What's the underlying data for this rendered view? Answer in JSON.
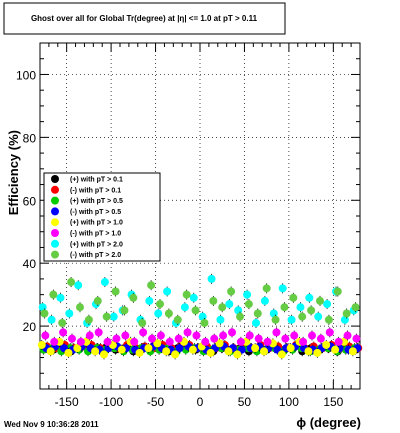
{
  "chart_data": {
    "type": "scatter",
    "title": "Ghost over all for Global Tr(degree) at |η| <= 1.0 at pT > 0.11",
    "xlabel": "ϕ (degree)",
    "ylabel": "Efficiency (%)",
    "xlim": [
      -180,
      180
    ],
    "ylim": [
      0,
      110
    ],
    "xticks": [
      -150,
      -100,
      -50,
      0,
      50,
      100,
      150
    ],
    "yticks": [
      20,
      40,
      60,
      80,
      100
    ],
    "grid": true,
    "legend_position": "left",
    "timestamp": "Wed Nov  9 10:36:28 2011",
    "series": [
      {
        "name": "(+) with pT > 0.1",
        "color": "#000000",
        "marker": "circle",
        "x": [
          -175,
          -165,
          -155,
          -145,
          -135,
          -125,
          -115,
          -105,
          -95,
          -85,
          -75,
          -65,
          -55,
          -45,
          -35,
          -25,
          -15,
          -5,
          5,
          15,
          25,
          35,
          45,
          55,
          65,
          75,
          85,
          95,
          105,
          115,
          125,
          135,
          145,
          155,
          165,
          175
        ],
        "y": [
          13,
          12.5,
          13,
          12,
          13,
          12.5,
          13,
          13.5,
          12.5,
          13,
          12,
          13,
          12.5,
          13,
          12,
          13,
          13.5,
          12.5,
          13,
          12,
          13,
          12.5,
          13,
          12,
          13,
          12.5,
          13,
          12.5,
          13,
          12,
          13,
          12.5,
          13,
          12,
          13,
          12.5
        ]
      },
      {
        "name": "(-) with pT > 0.1",
        "color": "#ff0000",
        "marker": "circle",
        "x": [
          -172,
          -162,
          -152,
          -142,
          -132,
          -122,
          -112,
          -102,
          -92,
          -82,
          -72,
          -62,
          -52,
          -42,
          -32,
          -22,
          -12,
          -2,
          8,
          18,
          28,
          38,
          48,
          58,
          68,
          78,
          88,
          98,
          108,
          118,
          128,
          138,
          148,
          158,
          168,
          178
        ],
        "y": [
          13.5,
          13,
          14,
          13,
          13.5,
          14,
          13,
          13.5,
          13,
          14,
          13,
          13.5,
          13,
          14,
          13,
          13.5,
          14,
          13,
          13.5,
          13,
          14,
          13,
          13.5,
          13,
          14,
          13,
          13.5,
          13,
          14,
          13,
          13.5,
          13,
          14,
          13,
          13.5,
          13
        ]
      },
      {
        "name": "(+) with pT > 0.5",
        "color": "#00cc00",
        "marker": "circle",
        "x": [
          -176,
          -166,
          -156,
          -146,
          -136,
          -126,
          -116,
          -106,
          -96,
          -86,
          -76,
          -66,
          -56,
          -46,
          -36,
          -26,
          -16,
          -6,
          4,
          14,
          24,
          34,
          44,
          54,
          64,
          74,
          84,
          94,
          104,
          114,
          124,
          134,
          144,
          154,
          164,
          174
        ],
        "y": [
          12.5,
          13,
          12,
          13,
          12.5,
          12,
          13,
          12.5,
          13,
          12,
          12.5,
          13,
          12,
          12.5,
          13,
          12,
          12.5,
          13,
          12,
          12.5,
          13,
          12,
          12.5,
          13,
          12,
          12.5,
          13,
          12,
          12.5,
          13,
          12,
          12.5,
          13,
          12,
          12.5,
          13
        ]
      },
      {
        "name": "(-) with pT > 0.5",
        "color": "#0000ff",
        "marker": "circle",
        "x": [
          -173,
          -163,
          -153,
          -143,
          -133,
          -123,
          -113,
          -103,
          -93,
          -83,
          -73,
          -63,
          -53,
          -43,
          -33,
          -23,
          -13,
          -3,
          7,
          17,
          27,
          37,
          47,
          57,
          67,
          77,
          87,
          97,
          107,
          117,
          127,
          137,
          147,
          157,
          167,
          177
        ],
        "y": [
          13,
          13.5,
          13,
          12.5,
          13.5,
          13,
          12.5,
          13,
          13.5,
          13,
          12.5,
          13,
          13.5,
          13,
          12.5,
          13,
          13.5,
          13,
          12.5,
          13,
          13.5,
          13,
          12.5,
          13,
          13.5,
          13,
          12.5,
          13,
          13.5,
          13,
          12.5,
          13,
          13.5,
          13,
          12.5,
          13
        ]
      },
      {
        "name": "(+) with pT > 1.0",
        "color": "#ffff00",
        "marker": "circle",
        "x": [
          -178,
          -168,
          -158,
          -148,
          -138,
          -128,
          -118,
          -108,
          -98,
          -88,
          -78,
          -68,
          -58,
          -48,
          -38,
          -28,
          -18,
          -8,
          2,
          12,
          22,
          32,
          42,
          52,
          62,
          72,
          82,
          92,
          102,
          112,
          122,
          132,
          142,
          152,
          162,
          172
        ],
        "y": [
          14,
          12,
          15,
          11.5,
          13,
          15,
          12,
          11,
          14,
          12.5,
          15,
          11.5,
          13,
          14.5,
          12,
          11,
          15,
          12.5,
          13.5,
          11.5,
          14.5,
          12,
          11,
          15,
          13,
          12,
          14.5,
          11,
          13,
          15,
          12,
          11.5,
          14,
          12.5,
          15,
          12
        ]
      },
      {
        "name": "(-) with pT > 1.0",
        "color": "#ff00ff",
        "marker": "circle",
        "x": [
          -174,
          -164,
          -154,
          -144,
          -134,
          -124,
          -114,
          -104,
          -94,
          -84,
          -74,
          -64,
          -54,
          -44,
          -34,
          -24,
          -14,
          -4,
          6,
          16,
          26,
          36,
          46,
          56,
          66,
          76,
          86,
          96,
          106,
          116,
          126,
          136,
          146,
          156,
          166,
          176
        ],
        "y": [
          17,
          15,
          18,
          16,
          15,
          17,
          18,
          15,
          16,
          17,
          15,
          18,
          16,
          17,
          15,
          16,
          18,
          17,
          15,
          16,
          17,
          18,
          15,
          17,
          16,
          15,
          18,
          16,
          17,
          15,
          17,
          16,
          18,
          15,
          17,
          16
        ]
      },
      {
        "name": "(+) with pT > 2.0",
        "color": "#00ffff",
        "marker": "circle",
        "x": [
          -177,
          -167,
          -157,
          -147,
          -137,
          -127,
          -117,
          -107,
          -97,
          -87,
          -77,
          -67,
          -57,
          -47,
          -37,
          -27,
          -17,
          -7,
          3,
          13,
          23,
          33,
          43,
          53,
          63,
          73,
          83,
          93,
          103,
          113,
          123,
          133,
          143,
          153,
          163,
          173
        ],
        "y": [
          26,
          22,
          29,
          24,
          33,
          21,
          27,
          34,
          23,
          25,
          30,
          22,
          28,
          24,
          31,
          21,
          26,
          29,
          23,
          35,
          22,
          27,
          25,
          30,
          21,
          28,
          24,
          32,
          22,
          26,
          29,
          23,
          27,
          31,
          22,
          25
        ]
      },
      {
        "name": "(-) with pT > 2.0",
        "color": "#66cc44",
        "marker": "circle",
        "x": [
          -175,
          -165,
          -155,
          -145,
          -135,
          -125,
          -115,
          -105,
          -95,
          -85,
          -75,
          -65,
          -55,
          -45,
          -35,
          -25,
          -15,
          -5,
          5,
          15,
          25,
          35,
          45,
          55,
          65,
          75,
          85,
          95,
          105,
          115,
          125,
          135,
          145,
          155,
          165,
          175
        ],
        "y": [
          24,
          30,
          21,
          34,
          26,
          22,
          28,
          23,
          31,
          25,
          29,
          21,
          33,
          27,
          24,
          22,
          30,
          25,
          21,
          28,
          26,
          31,
          23,
          27,
          24,
          32,
          22,
          26,
          29,
          23,
          25,
          28,
          22,
          31,
          24,
          26
        ]
      }
    ]
  }
}
